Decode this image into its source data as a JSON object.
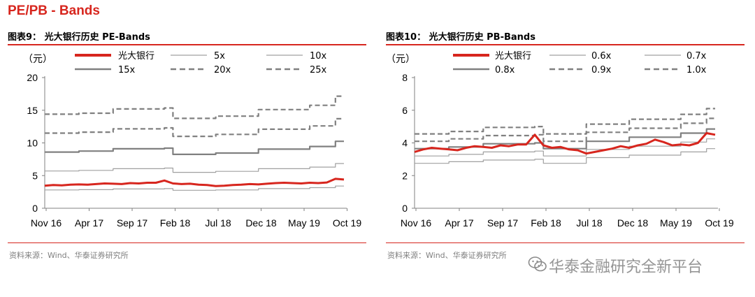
{
  "page_title": "PE/PB - Bands",
  "source_text": "资料来源：Wind、华泰证券研究所",
  "watermark": "华泰金融研究全新平台",
  "watermark_icon": "wechat-icon",
  "colors": {
    "accent": "#d7261e",
    "price": "#d7261e",
    "band": "#808080",
    "axis": "#808080"
  },
  "chart_data": [
    {
      "type": "line",
      "title": "图表9：  光大银行历史 PE-Bands",
      "unit": "（元）",
      "x_ticks": [
        "Nov 16",
        "Apr 17",
        "Sep 17",
        "Feb 18",
        "Jul 18",
        "Dec 18",
        "May 19",
        "Oct 19"
      ],
      "x_range": [
        "2016-11",
        "2019-11"
      ],
      "ylim": [
        0,
        20
      ],
      "y_ticks": [
        0,
        5,
        10,
        15,
        20
      ],
      "legend_position": "top",
      "series": [
        {
          "name": "光大银行",
          "style": "price",
          "dash": "solid",
          "points": [
            [
              0,
              3.45
            ],
            [
              1,
              3.55
            ],
            [
              2,
              3.5
            ],
            [
              3,
              3.6
            ],
            [
              4,
              3.65
            ],
            [
              5,
              3.6
            ],
            [
              6,
              3.7
            ],
            [
              7,
              3.8
            ],
            [
              8,
              3.75
            ],
            [
              9,
              3.7
            ],
            [
              10,
              3.85
            ],
            [
              11,
              3.8
            ],
            [
              12,
              3.9
            ],
            [
              13,
              3.9
            ],
            [
              14,
              4.25
            ],
            [
              15,
              3.8
            ],
            [
              16,
              3.7
            ],
            [
              17,
              3.75
            ],
            [
              18,
              3.6
            ],
            [
              19,
              3.55
            ],
            [
              20,
              3.4
            ],
            [
              21,
              3.45
            ],
            [
              22,
              3.55
            ],
            [
              23,
              3.6
            ],
            [
              24,
              3.7
            ],
            [
              25,
              3.65
            ],
            [
              26,
              3.75
            ],
            [
              27,
              3.85
            ],
            [
              28,
              3.9
            ],
            [
              29,
              3.85
            ],
            [
              30,
              3.8
            ],
            [
              31,
              3.9
            ],
            [
              32,
              3.85
            ],
            [
              33,
              3.95
            ],
            [
              34,
              4.5
            ],
            [
              35,
              4.4
            ]
          ]
        },
        {
          "name": "5x",
          "style": "band-thin",
          "dash": "solid",
          "points": [
            [
              0,
              2.8
            ],
            [
              4,
              2.85
            ],
            [
              8,
              2.95
            ],
            [
              14,
              3.0
            ],
            [
              15,
              2.75
            ],
            [
              20,
              2.8
            ],
            [
              25,
              3.0
            ],
            [
              31,
              3.15
            ],
            [
              34,
              3.4
            ],
            [
              35,
              3.4
            ]
          ]
        },
        {
          "name": "10x",
          "style": "band-thin",
          "dash": "solid",
          "points": [
            [
              0,
              5.7
            ],
            [
              4,
              5.8
            ],
            [
              8,
              6.05
            ],
            [
              14,
              6.15
            ],
            [
              15,
              5.5
            ],
            [
              20,
              5.65
            ],
            [
              25,
              6.05
            ],
            [
              31,
              6.3
            ],
            [
              34,
              6.85
            ],
            [
              35,
              6.85
            ]
          ]
        },
        {
          "name": "15x",
          "style": "band-thick",
          "dash": "solid",
          "points": [
            [
              0,
              8.6
            ],
            [
              4,
              8.75
            ],
            [
              8,
              9.1
            ],
            [
              14,
              9.2
            ],
            [
              15,
              8.25
            ],
            [
              20,
              8.45
            ],
            [
              25,
              9.05
            ],
            [
              31,
              9.45
            ],
            [
              34,
              10.25
            ],
            [
              35,
              10.25
            ]
          ]
        },
        {
          "name": "20x",
          "style": "band-thick",
          "dash": "dash",
          "points": [
            [
              0,
              11.5
            ],
            [
              4,
              11.65
            ],
            [
              8,
              12.15
            ],
            [
              14,
              12.3
            ],
            [
              15,
              11.0
            ],
            [
              20,
              11.3
            ],
            [
              25,
              12.1
            ],
            [
              31,
              12.6
            ],
            [
              34,
              13.7
            ],
            [
              35,
              13.7
            ]
          ]
        },
        {
          "name": "25x",
          "style": "band-thick",
          "dash": "dash",
          "points": [
            [
              0,
              14.4
            ],
            [
              4,
              14.55
            ],
            [
              8,
              15.2
            ],
            [
              14,
              15.35
            ],
            [
              15,
              13.75
            ],
            [
              20,
              14.1
            ],
            [
              25,
              15.1
            ],
            [
              31,
              15.75
            ],
            [
              34,
              17.15
            ],
            [
              35,
              17.15
            ]
          ]
        }
      ]
    },
    {
      "type": "line",
      "title": "图表10：  光大银行历史 PB-Bands",
      "unit": "（元）",
      "x_ticks": [
        "Nov 16",
        "Apr 17",
        "Sep 17",
        "Feb 18",
        "Jul 18",
        "Dec 18",
        "May 19",
        "Oct 19"
      ],
      "x_range": [
        "2016-11",
        "2019-11"
      ],
      "ylim": [
        0,
        8
      ],
      "y_ticks": [
        0,
        2,
        4,
        6,
        8
      ],
      "legend_position": "top",
      "series": [
        {
          "name": "光大银行",
          "style": "price",
          "dash": "solid",
          "points": [
            [
              0,
              3.45
            ],
            [
              1,
              3.6
            ],
            [
              2,
              3.7
            ],
            [
              3,
              3.65
            ],
            [
              4,
              3.6
            ],
            [
              5,
              3.55
            ],
            [
              6,
              3.7
            ],
            [
              7,
              3.8
            ],
            [
              8,
              3.75
            ],
            [
              9,
              3.7
            ],
            [
              10,
              3.85
            ],
            [
              11,
              3.8
            ],
            [
              12,
              3.9
            ],
            [
              13,
              3.9
            ],
            [
              14,
              4.5
            ],
            [
              15,
              3.85
            ],
            [
              16,
              3.7
            ],
            [
              17,
              3.75
            ],
            [
              18,
              3.6
            ],
            [
              19,
              3.55
            ],
            [
              20,
              3.35
            ],
            [
              21,
              3.45
            ],
            [
              22,
              3.55
            ],
            [
              23,
              3.65
            ],
            [
              24,
              3.8
            ],
            [
              25,
              3.7
            ],
            [
              26,
              3.85
            ],
            [
              27,
              3.95
            ],
            [
              28,
              4.2
            ],
            [
              29,
              4.05
            ],
            [
              30,
              3.85
            ],
            [
              31,
              3.9
            ],
            [
              32,
              3.85
            ],
            [
              33,
              4.0
            ],
            [
              34,
              4.6
            ],
            [
              35,
              4.5
            ]
          ]
        },
        {
          "name": "0.6x",
          "style": "band-thin",
          "dash": "solid",
          "points": [
            [
              0,
              2.75
            ],
            [
              4,
              2.85
            ],
            [
              8,
              2.95
            ],
            [
              14,
              3.0
            ],
            [
              15,
              2.75
            ],
            [
              20,
              3.1
            ],
            [
              25,
              3.25
            ],
            [
              31,
              3.45
            ],
            [
              34,
              3.65
            ],
            [
              35,
              3.65
            ]
          ]
        },
        {
          "name": "0.7x",
          "style": "band-thin",
          "dash": "solid",
          "points": [
            [
              0,
              3.2
            ],
            [
              4,
              3.3
            ],
            [
              8,
              3.45
            ],
            [
              14,
              3.5
            ],
            [
              15,
              3.2
            ],
            [
              20,
              3.6
            ],
            [
              25,
              3.8
            ],
            [
              31,
              4.05
            ],
            [
              34,
              4.25
            ],
            [
              35,
              4.25
            ]
          ]
        },
        {
          "name": "0.8x",
          "style": "band-thick",
          "dash": "solid",
          "points": [
            [
              0,
              3.65
            ],
            [
              4,
              3.75
            ],
            [
              8,
              3.95
            ],
            [
              14,
              4.0
            ],
            [
              15,
              3.65
            ],
            [
              20,
              4.1
            ],
            [
              25,
              4.35
            ],
            [
              31,
              4.6
            ],
            [
              34,
              4.85
            ],
            [
              35,
              4.85
            ]
          ]
        },
        {
          "name": "0.9x",
          "style": "band-thick",
          "dash": "dash",
          "points": [
            [
              0,
              4.1
            ],
            [
              4,
              4.25
            ],
            [
              8,
              4.45
            ],
            [
              14,
              4.5
            ],
            [
              15,
              4.1
            ],
            [
              20,
              4.65
            ],
            [
              25,
              4.9
            ],
            [
              31,
              5.2
            ],
            [
              34,
              5.5
            ],
            [
              35,
              5.5
            ]
          ]
        },
        {
          "name": "1.0x",
          "style": "band-thick",
          "dash": "dash",
          "points": [
            [
              0,
              4.55
            ],
            [
              4,
              4.7
            ],
            [
              8,
              4.95
            ],
            [
              14,
              5.0
            ],
            [
              15,
              4.55
            ],
            [
              20,
              5.15
            ],
            [
              25,
              5.45
            ],
            [
              31,
              5.75
            ],
            [
              34,
              6.1
            ],
            [
              35,
              6.1
            ]
          ]
        }
      ]
    }
  ]
}
